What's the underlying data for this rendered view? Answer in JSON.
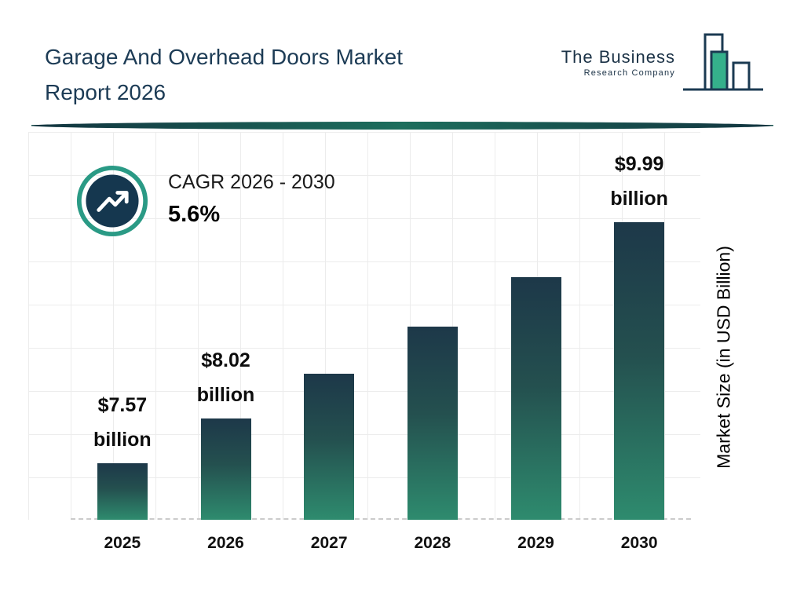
{
  "header": {
    "title_line1": "Garage And Overhead Doors Market",
    "title_line2": "Report 2026",
    "logo": {
      "line1": "The Business",
      "line2": "Research Company"
    }
  },
  "cagr": {
    "label": "CAGR 2026 - 2030",
    "value": "5.6%"
  },
  "chart_data": {
    "type": "bar",
    "title": "Garage And Overhead Doors Market Report 2026",
    "categories": [
      "2025",
      "2026",
      "2027",
      "2028",
      "2029",
      "2030"
    ],
    "values": [
      7.57,
      8.02,
      8.47,
      8.94,
      9.44,
      9.99
    ],
    "annotations": [
      {
        "category": "2025",
        "value": "$7.57",
        "unit": "billion"
      },
      {
        "category": "2026",
        "value": "$8.02",
        "unit": "billion"
      },
      {
        "category": "2030",
        "value": "$9.99",
        "unit": "billion"
      }
    ],
    "xlabel": "",
    "ylabel": "Market Size (in USD Billion)",
    "ylim": [
      7,
      10.8
    ],
    "grid": true,
    "legend": false,
    "colors": {
      "bar_top": "#1d3849",
      "bar_bottom": "#2e8b6e",
      "accent_teal": "#2a9a85",
      "dark_navy": "#15374f",
      "logo_green": "#35b08b",
      "divider": "#1a5c52"
    }
  }
}
